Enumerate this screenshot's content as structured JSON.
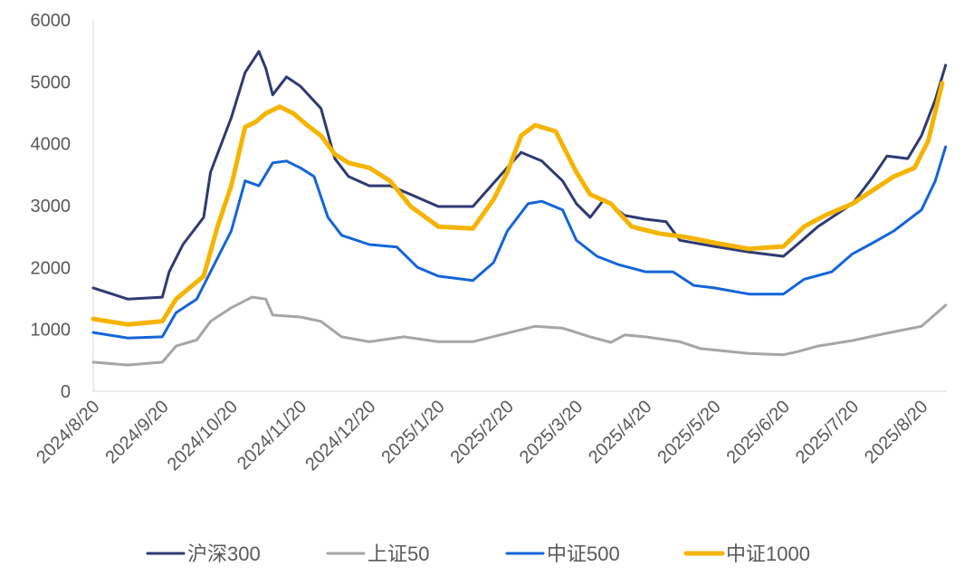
{
  "chart_data": {
    "type": "line",
    "title": "",
    "xlabel": "",
    "ylabel": "",
    "ylim": [
      0,
      6000
    ],
    "yticks": [
      "0",
      "1000",
      "2000",
      "3000",
      "4000",
      "5000",
      "6000"
    ],
    "xticks": [
      "2024/8/20",
      "2024/9/20",
      "2024/10/20",
      "2024/11/20",
      "2024/12/20",
      "2025/1/20",
      "2025/2/20",
      "2025/3/20",
      "2025/4/20",
      "2025/5/20",
      "2025/6/20",
      "2025/7/20",
      "2025/8/20"
    ],
    "x_unit": "months since 2024/8/20",
    "grid": false,
    "legend_position": "bottom",
    "series": [
      {
        "name": "沪深300",
        "color": "#2e3a72",
        "width": 3,
        "x": [
          0,
          0.5,
          1.0,
          1.1,
          1.3,
          1.6,
          1.7,
          2.0,
          2.2,
          2.4,
          2.5,
          2.6,
          2.8,
          3.0,
          3.3,
          3.5,
          3.7,
          4.0,
          4.3,
          4.6,
          5.0,
          5.5,
          6.0,
          6.2,
          6.5,
          6.8,
          7.0,
          7.2,
          7.4,
          7.7,
          8.0,
          8.3,
          8.5,
          9.0,
          9.5,
          10.0,
          10.2,
          10.5,
          11.0,
          11.3,
          11.5,
          11.8,
          12.0,
          12.2,
          12.35
        ],
        "y": [
          1670,
          1490,
          1520,
          1930,
          2370,
          2810,
          3540,
          4420,
          5150,
          5490,
          5220,
          4790,
          5080,
          4930,
          4570,
          3760,
          3470,
          3320,
          3320,
          3180,
          2985,
          2985,
          3615,
          3860,
          3720,
          3400,
          3030,
          2810,
          3100,
          2840,
          2780,
          2740,
          2440,
          2340,
          2250,
          2180,
          2370,
          2660,
          3030,
          3470,
          3800,
          3760,
          4130,
          4710,
          5270
        ]
      },
      {
        "name": "上证50",
        "color": "#a6a6a6",
        "width": 3,
        "x": [
          0,
          0.5,
          1.0,
          1.2,
          1.5,
          1.7,
          2.0,
          2.3,
          2.5,
          2.6,
          3.0,
          3.3,
          3.6,
          4.0,
          4.5,
          5.0,
          5.5,
          6.0,
          6.4,
          6.8,
          7.2,
          7.5,
          7.7,
          8.0,
          8.5,
          8.8,
          9.5,
          10.0,
          10.2,
          10.5,
          11.0,
          11.5,
          12.0,
          12.35
        ],
        "y": [
          470,
          425,
          470,
          730,
          830,
          1130,
          1350,
          1520,
          1490,
          1230,
          1200,
          1130,
          880,
          800,
          880,
          800,
          800,
          940,
          1050,
          1020,
          880,
          790,
          910,
          880,
          800,
          690,
          610,
          590,
          640,
          730,
          820,
          940,
          1050,
          1390
        ]
      },
      {
        "name": "中证500",
        "color": "#1565d8",
        "width": 3,
        "x": [
          0,
          0.5,
          1.0,
          1.2,
          1.5,
          1.7,
          2.0,
          2.2,
          2.4,
          2.6,
          2.8,
          3.0,
          3.2,
          3.4,
          3.6,
          4.0,
          4.4,
          4.7,
          5.0,
          5.5,
          5.8,
          6.0,
          6.3,
          6.5,
          6.8,
          7.0,
          7.3,
          7.6,
          8.0,
          8.4,
          8.7,
          9.0,
          9.5,
          10.0,
          10.3,
          10.7,
          11.0,
          11.3,
          11.6,
          12.0,
          12.2,
          12.35
        ],
        "y": [
          950,
          860,
          880,
          1270,
          1490,
          1930,
          2590,
          3400,
          3320,
          3690,
          3720,
          3610,
          3470,
          2810,
          2520,
          2370,
          2330,
          2000,
          1860,
          1790,
          2080,
          2590,
          3030,
          3070,
          2930,
          2440,
          2180,
          2050,
          1930,
          1930,
          1710,
          1670,
          1570,
          1570,
          1810,
          1930,
          2220,
          2400,
          2590,
          2930,
          3400,
          3950
        ]
      },
      {
        "name": "中证1000",
        "color": "#f5b400",
        "width": 5,
        "x": [
          0,
          0.5,
          1.0,
          1.2,
          1.6,
          1.8,
          2.0,
          2.2,
          2.35,
          2.5,
          2.7,
          2.9,
          3.1,
          3.3,
          3.5,
          3.7,
          4.0,
          4.3,
          4.6,
          5.0,
          5.5,
          5.8,
          6.0,
          6.2,
          6.4,
          6.7,
          7.0,
          7.2,
          7.5,
          7.8,
          8.2,
          8.6,
          9.0,
          9.5,
          10.0,
          10.3,
          10.6,
          11.0,
          11.3,
          11.6,
          11.9,
          12.1,
          12.3
        ],
        "y": [
          1170,
          1080,
          1130,
          1490,
          1860,
          2660,
          3320,
          4270,
          4350,
          4490,
          4600,
          4490,
          4300,
          4130,
          3830,
          3690,
          3610,
          3400,
          2985,
          2660,
          2630,
          3100,
          3540,
          4130,
          4300,
          4200,
          3540,
          3180,
          3030,
          2660,
          2550,
          2490,
          2400,
          2300,
          2340,
          2660,
          2840,
          3030,
          3250,
          3470,
          3610,
          4050,
          4980
        ]
      }
    ]
  }
}
